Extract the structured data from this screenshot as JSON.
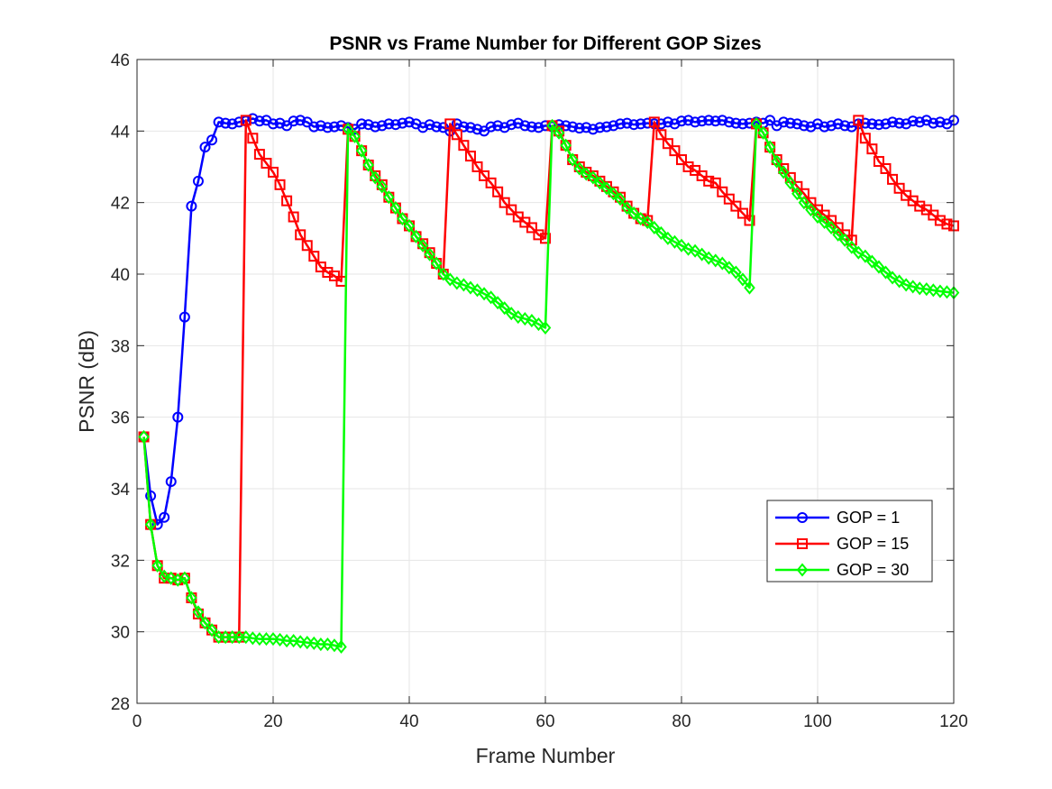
{
  "chart_data": {
    "type": "line",
    "title": "PSNR vs Frame Number for Different GOP Sizes",
    "xlabel": "Frame Number",
    "ylabel": "PSNR (dB)",
    "xlim": [
      0,
      120
    ],
    "ylim": [
      28,
      46
    ],
    "xticks": [
      0,
      20,
      40,
      60,
      80,
      100,
      120
    ],
    "yticks": [
      28,
      30,
      32,
      34,
      36,
      38,
      40,
      42,
      44,
      46
    ],
    "grid": true,
    "legend_position": "lower-right",
    "series": [
      {
        "name": "GOP = 1",
        "color": "#0000ff",
        "marker": "circle",
        "x": [
          1,
          2,
          3,
          4,
          5,
          6,
          7,
          8,
          9,
          10,
          11,
          12,
          13,
          14,
          15,
          16,
          17,
          18,
          19,
          20,
          21,
          22,
          23,
          24,
          25,
          26,
          27,
          28,
          29,
          30,
          31,
          32,
          33,
          34,
          35,
          36,
          37,
          38,
          39,
          40,
          41,
          42,
          43,
          44,
          45,
          46,
          47,
          48,
          49,
          50,
          51,
          52,
          53,
          54,
          55,
          56,
          57,
          58,
          59,
          60,
          61,
          62,
          63,
          64,
          65,
          66,
          67,
          68,
          69,
          70,
          71,
          72,
          73,
          74,
          75,
          76,
          77,
          78,
          79,
          80,
          81,
          82,
          83,
          84,
          85,
          86,
          87,
          88,
          89,
          90,
          91,
          92,
          93,
          94,
          95,
          96,
          97,
          98,
          99,
          100,
          101,
          102,
          103,
          104,
          105,
          106,
          107,
          108,
          109,
          110,
          111,
          112,
          113,
          114,
          115,
          116,
          117,
          118,
          119,
          120
        ],
        "y": [
          35.45,
          33.8,
          33.0,
          33.2,
          34.2,
          36.0,
          38.8,
          41.9,
          42.6,
          43.55,
          43.75,
          44.25,
          44.22,
          44.2,
          44.25,
          44.28,
          44.35,
          44.28,
          44.3,
          44.2,
          44.22,
          44.15,
          44.28,
          44.3,
          44.25,
          44.12,
          44.15,
          44.1,
          44.12,
          44.15,
          44.1,
          44.05,
          44.2,
          44.18,
          44.12,
          44.15,
          44.2,
          44.18,
          44.22,
          44.25,
          44.2,
          44.1,
          44.18,
          44.12,
          44.1,
          44.0,
          44.2,
          44.12,
          44.1,
          44.05,
          44.0,
          44.12,
          44.15,
          44.1,
          44.18,
          44.22,
          44.15,
          44.12,
          44.1,
          44.15,
          44.12,
          44.18,
          44.15,
          44.12,
          44.08,
          44.1,
          44.05,
          44.1,
          44.12,
          44.15,
          44.2,
          44.22,
          44.18,
          44.2,
          44.22,
          44.2,
          44.2,
          44.25,
          44.2,
          44.28,
          44.3,
          44.25,
          44.28,
          44.3,
          44.28,
          44.3,
          44.25,
          44.22,
          44.2,
          44.22,
          44.25,
          44.22,
          44.3,
          44.15,
          44.25,
          44.22,
          44.2,
          44.15,
          44.12,
          44.2,
          44.12,
          44.15,
          44.2,
          44.15,
          44.12,
          44.2,
          44.22,
          44.2,
          44.18,
          44.2,
          44.25,
          44.22,
          44.2,
          44.28,
          44.25,
          44.3,
          44.22,
          44.25,
          44.2,
          44.3
        ]
      },
      {
        "name": "GOP = 15",
        "color": "#ff0000",
        "marker": "square",
        "x": [
          1,
          2,
          3,
          4,
          5,
          6,
          7,
          8,
          9,
          10,
          11,
          12,
          13,
          14,
          15,
          16,
          17,
          18,
          19,
          20,
          21,
          22,
          23,
          24,
          25,
          26,
          27,
          28,
          29,
          30,
          31,
          32,
          33,
          34,
          35,
          36,
          37,
          38,
          39,
          40,
          41,
          42,
          43,
          44,
          45,
          46,
          47,
          48,
          49,
          50,
          51,
          52,
          53,
          54,
          55,
          56,
          57,
          58,
          59,
          60,
          61,
          62,
          63,
          64,
          65,
          66,
          67,
          68,
          69,
          70,
          71,
          72,
          73,
          74,
          75,
          76,
          77,
          78,
          79,
          80,
          81,
          82,
          83,
          84,
          85,
          86,
          87,
          88,
          89,
          90,
          91,
          92,
          93,
          94,
          95,
          96,
          97,
          98,
          99,
          100,
          101,
          102,
          103,
          104,
          105,
          106,
          107,
          108,
          109,
          110,
          111,
          112,
          113,
          114,
          115,
          116,
          117,
          118,
          119,
          120
        ],
        "y": [
          35.45,
          33.0,
          31.85,
          31.5,
          31.5,
          31.45,
          31.5,
          30.95,
          30.5,
          30.25,
          30.05,
          29.85,
          29.85,
          29.85,
          29.85,
          44.3,
          43.8,
          43.35,
          43.1,
          42.85,
          42.5,
          42.05,
          41.6,
          41.1,
          40.8,
          40.5,
          40.2,
          40.05,
          39.95,
          39.8,
          44.05,
          43.85,
          43.45,
          43.05,
          42.75,
          42.5,
          42.15,
          41.85,
          41.55,
          41.35,
          41.05,
          40.85,
          40.6,
          40.3,
          40.0,
          44.2,
          43.9,
          43.6,
          43.3,
          43.0,
          42.75,
          42.55,
          42.3,
          42.0,
          41.8,
          41.6,
          41.45,
          41.3,
          41.1,
          41.0,
          44.15,
          44.0,
          43.6,
          43.2,
          43.0,
          42.85,
          42.75,
          42.6,
          42.45,
          42.3,
          42.15,
          41.9,
          41.7,
          41.55,
          41.5,
          44.25,
          43.9,
          43.65,
          43.45,
          43.2,
          43.0,
          42.9,
          42.75,
          42.6,
          42.55,
          42.3,
          42.1,
          41.9,
          41.7,
          41.5,
          44.2,
          43.95,
          43.55,
          43.2,
          42.95,
          42.7,
          42.45,
          42.25,
          42.0,
          41.8,
          41.65,
          41.5,
          41.3,
          41.1,
          40.95,
          44.3,
          43.8,
          43.5,
          43.15,
          42.95,
          42.65,
          42.4,
          42.2,
          42.05,
          41.9,
          41.8,
          41.65,
          41.5,
          41.4,
          41.35
        ]
      },
      {
        "name": "GOP = 30",
        "color": "#00ff00",
        "marker": "diamond",
        "x": [
          1,
          2,
          3,
          4,
          5,
          6,
          7,
          8,
          9,
          10,
          11,
          12,
          13,
          14,
          15,
          16,
          17,
          18,
          19,
          20,
          21,
          22,
          23,
          24,
          25,
          26,
          27,
          28,
          29,
          30,
          31,
          32,
          33,
          34,
          35,
          36,
          37,
          38,
          39,
          40,
          41,
          42,
          43,
          44,
          45,
          46,
          47,
          48,
          49,
          50,
          51,
          52,
          53,
          54,
          55,
          56,
          57,
          58,
          59,
          60,
          61,
          62,
          63,
          64,
          65,
          66,
          67,
          68,
          69,
          70,
          71,
          72,
          73,
          74,
          75,
          76,
          77,
          78,
          79,
          80,
          81,
          82,
          83,
          84,
          85,
          86,
          87,
          88,
          89,
          90,
          91,
          92,
          93,
          94,
          95,
          96,
          97,
          98,
          99,
          100,
          101,
          102,
          103,
          104,
          105,
          106,
          107,
          108,
          109,
          110,
          111,
          112,
          113,
          114,
          115,
          116,
          117,
          118,
          119,
          120
        ],
        "y": [
          35.45,
          33.0,
          31.85,
          31.55,
          31.5,
          31.45,
          31.5,
          30.95,
          30.55,
          30.25,
          30.05,
          29.85,
          29.85,
          29.85,
          29.85,
          29.85,
          29.82,
          29.8,
          29.8,
          29.8,
          29.78,
          29.75,
          29.75,
          29.72,
          29.7,
          29.68,
          29.65,
          29.65,
          29.62,
          29.58,
          44.05,
          43.85,
          43.45,
          43.05,
          42.7,
          42.45,
          42.15,
          41.85,
          41.55,
          41.35,
          41.05,
          40.8,
          40.55,
          40.3,
          40.0,
          39.85,
          39.75,
          39.7,
          39.62,
          39.55,
          39.45,
          39.35,
          39.2,
          39.05,
          38.9,
          38.8,
          38.75,
          38.7,
          38.6,
          38.5,
          44.15,
          43.95,
          43.6,
          43.2,
          42.95,
          42.8,
          42.7,
          42.55,
          42.4,
          42.25,
          42.1,
          41.85,
          41.7,
          41.55,
          41.45,
          41.3,
          41.15,
          41.0,
          40.9,
          40.8,
          40.7,
          40.65,
          40.55,
          40.45,
          40.38,
          40.3,
          40.18,
          40.05,
          39.85,
          39.62,
          44.2,
          43.95,
          43.55,
          43.15,
          42.85,
          42.55,
          42.25,
          42.0,
          41.8,
          41.6,
          41.45,
          41.3,
          41.1,
          40.95,
          40.75,
          40.6,
          40.5,
          40.35,
          40.2,
          40.05,
          39.9,
          39.8,
          39.7,
          39.65,
          39.6,
          39.58,
          39.55,
          39.52,
          39.5,
          39.48
        ]
      }
    ]
  }
}
